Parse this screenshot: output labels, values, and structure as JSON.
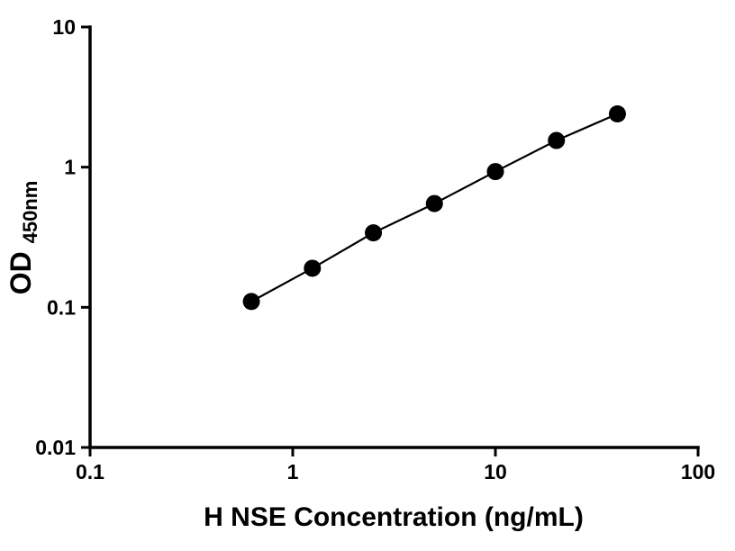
{
  "chart_data": {
    "type": "line",
    "markers": true,
    "x": [
      0.625,
      1.25,
      2.5,
      5,
      10,
      20,
      40
    ],
    "y": [
      0.11,
      0.19,
      0.34,
      0.55,
      0.93,
      1.55,
      2.4
    ],
    "title": "",
    "xlabel": "H NSE Concentration (ng/mL)",
    "ylabel_main": "OD",
    "ylabel_sub": "450nm",
    "x_scale": "log",
    "y_scale": "log",
    "xlim": [
      0.1,
      100
    ],
    "ylim": [
      0.01,
      10
    ],
    "x_ticks": [
      "0.1",
      "1",
      "10",
      "100"
    ],
    "y_ticks": [
      "0.01",
      "0.1",
      "1",
      "10"
    ],
    "grid": false,
    "legend": "none",
    "line_color": "#000000",
    "marker_color": "#000000",
    "axis_color": "#000000",
    "background": "#ffffff"
  }
}
